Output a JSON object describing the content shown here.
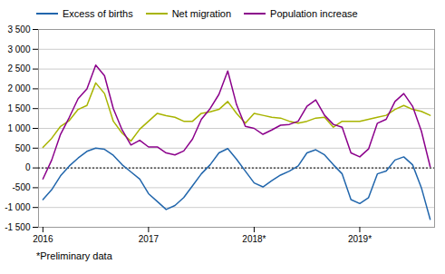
{
  "chart_data": {
    "type": "line",
    "caption": "*Preliminary data",
    "categories": [
      "2016",
      null,
      null,
      null,
      null,
      null,
      null,
      null,
      null,
      null,
      null,
      null,
      "2017",
      null,
      null,
      null,
      null,
      null,
      null,
      null,
      null,
      null,
      null,
      null,
      "2018*",
      null,
      null,
      null,
      null,
      null,
      null,
      null,
      null,
      null,
      null,
      null,
      "2019*",
      null,
      null,
      null,
      null,
      null,
      null,
      null,
      null
    ],
    "series": [
      {
        "name": "Excess of births",
        "color": "#2166ac",
        "values": [
          -800,
          -550,
          -200,
          50,
          250,
          420,
          500,
          470,
          320,
          80,
          -100,
          -280,
          -650,
          -850,
          -1050,
          -950,
          -750,
          -450,
          -150,
          80,
          380,
          490,
          220,
          -80,
          -380,
          -480,
          -320,
          -180,
          -80,
          50,
          380,
          460,
          330,
          80,
          -150,
          -800,
          -900,
          -750,
          -150,
          -80,
          200,
          280,
          80,
          -500,
          -1300
        ]
      },
      {
        "name": "Net migration",
        "color": "#a8b400",
        "values": [
          520,
          750,
          1050,
          1200,
          1480,
          1580,
          2150,
          1880,
          1180,
          880,
          680,
          980,
          1180,
          1380,
          1320,
          1280,
          1180,
          1180,
          1380,
          1420,
          1480,
          1680,
          1380,
          1130,
          1380,
          1330,
          1280,
          1260,
          1180,
          1130,
          1180,
          1260,
          1280,
          1030,
          1180,
          1180,
          1180,
          1230,
          1280,
          1330,
          1480,
          1580,
          1480,
          1430,
          1330
        ]
      },
      {
        "name": "Population increase",
        "color": "#8b008b",
        "values": [
          -280,
          200,
          850,
          1280,
          1750,
          2000,
          2600,
          2330,
          1500,
          960,
          580,
          700,
          530,
          530,
          380,
          330,
          430,
          730,
          1230,
          1500,
          1860,
          2450,
          1600,
          1050,
          1000,
          850,
          960,
          1080,
          1100,
          1180,
          1560,
          1720,
          1330,
          1100,
          1030,
          380,
          280,
          480,
          1130,
          1230,
          1680,
          1880,
          1560,
          930,
          30
        ]
      }
    ],
    "ylim": [
      -1500,
      3500
    ],
    "yticks": [
      {
        "value": -1500,
        "label": "-1 500"
      },
      {
        "value": -1000,
        "label": "-1 000"
      },
      -500,
      0,
      500,
      {
        "value": 1000,
        "label": "1 000"
      },
      {
        "value": 1500,
        "label": "1 500"
      },
      {
        "value": 2000,
        "label": "2 000"
      },
      {
        "value": 2500,
        "label": "2 500"
      },
      {
        "value": 3000,
        "label": "3 000"
      },
      {
        "value": 3500,
        "label": "3 500"
      }
    ],
    "grid": true,
    "legend": "upper left"
  }
}
